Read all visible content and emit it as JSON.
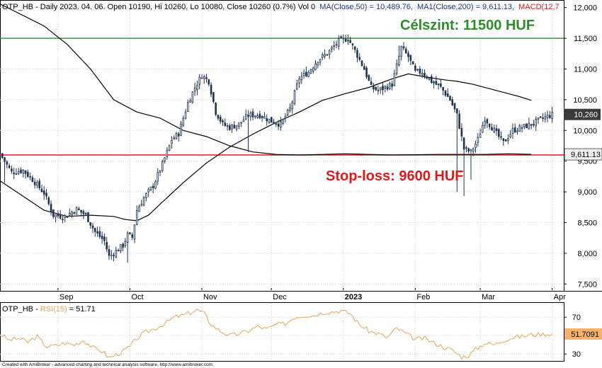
{
  "chart_data": [
    {
      "type": "candlestick",
      "title": "OTP_HB - Daily 2023. 04. 06. Open 10190, Hi 10260, Lo 10080, Close 10260 (0.7%) Vol 0",
      "legend": {
        "ma50": "MA(Close,50) = 10,489.76,",
        "ma200": "MA1(Close,200) = 9,611.13,",
        "macd": "MACD(12,7"
      },
      "y_ticks": [
        "12,000",
        "11,500",
        "11,000",
        "10,500",
        "10,000",
        "9,500",
        "9,000",
        "8,500",
        "8,000",
        "7,500"
      ],
      "ylim": [
        7400,
        12100
      ],
      "x_labels": [
        {
          "label": "Sep",
          "day": 6
        },
        {
          "label": "Oct",
          "day": 37
        },
        {
          "label": "Nov",
          "day": 68
        },
        {
          "label": "Dec",
          "day": 98
        },
        {
          "label": "2023",
          "day": 129
        },
        {
          "label": "Feb",
          "day": 160
        },
        {
          "label": "Mar",
          "day": 188
        },
        {
          "label": "Apr",
          "day": 219
        }
      ],
      "xlim": [
        -19,
        224
      ],
      "current_price": "10,260",
      "ma200_value": "9,611.13",
      "annotations": [
        {
          "text": "Célszint: 11500 HUF",
          "level": 11500,
          "color": "#2e8b2e"
        },
        {
          "text": "Stop-loss: 9600 HUF",
          "level": 9600,
          "color": "#e0191a"
        }
      ],
      "levels": {
        "target": 11500,
        "stop": 9600
      },
      "colors": {
        "up": "#ffffff",
        "down": "#1e3451",
        "target_line": "#2e8b2e",
        "stop_line": "#e0191a",
        "ma": "#000000",
        "rsi": "#e8a45a"
      },
      "close_points": [
        [
          -19,
          9620
        ],
        [
          -14,
          9320
        ],
        [
          -9,
          9350
        ],
        [
          -5,
          9200
        ],
        [
          0,
          8980
        ],
        [
          4,
          8620
        ],
        [
          9,
          8600
        ],
        [
          14,
          8720
        ],
        [
          18,
          8620
        ],
        [
          22,
          8350
        ],
        [
          26,
          8200
        ],
        [
          28,
          7950
        ],
        [
          30,
          8000
        ],
        [
          34,
          8130
        ],
        [
          36,
          8300
        ],
        [
          38,
          8260
        ],
        [
          40,
          8700
        ],
        [
          43,
          8900
        ],
        [
          47,
          9100
        ],
        [
          51,
          9450
        ],
        [
          55,
          9850
        ],
        [
          58,
          9950
        ],
        [
          62,
          10450
        ],
        [
          65,
          10700
        ],
        [
          68,
          10900
        ],
        [
          71,
          10800
        ],
        [
          74,
          10300
        ],
        [
          77,
          10100
        ],
        [
          80,
          10050
        ],
        [
          84,
          10100
        ],
        [
          88,
          10250
        ],
        [
          93,
          10250
        ],
        [
          98,
          10150
        ],
        [
          102,
          10100
        ],
        [
          106,
          10350
        ],
        [
          110,
          10850
        ],
        [
          114,
          10950
        ],
        [
          118,
          11150
        ],
        [
          122,
          11250
        ],
        [
          127,
          11450
        ],
        [
          131,
          11500
        ],
        [
          134,
          11300
        ],
        [
          138,
          11000
        ],
        [
          141,
          10700
        ],
        [
          144,
          10650
        ],
        [
          147,
          10700
        ],
        [
          150,
          10750
        ],
        [
          154,
          11350
        ],
        [
          157,
          11200
        ],
        [
          160,
          10950
        ],
        [
          163,
          10950
        ],
        [
          167,
          10800
        ],
        [
          171,
          10700
        ],
        [
          175,
          10500
        ],
        [
          178,
          10250
        ],
        [
          181,
          9700
        ],
        [
          184,
          9650
        ],
        [
          187,
          9850
        ],
        [
          190,
          10200
        ],
        [
          194,
          10000
        ],
        [
          198,
          9800
        ],
        [
          202,
          10000
        ],
        [
          206,
          10050
        ],
        [
          210,
          10100
        ],
        [
          215,
          10200
        ],
        [
          219,
          10260
        ]
      ],
      "wicks": [
        {
          "day": -17,
          "low": 9150
        },
        {
          "day": 36,
          "low": 7850
        },
        {
          "day": 88,
          "low": 9650
        },
        {
          "day": 127,
          "high": 11550
        },
        {
          "day": 131,
          "high": 11560
        },
        {
          "day": 178,
          "low": 9000
        },
        {
          "day": 181,
          "low": 8930
        },
        {
          "day": 184,
          "low": 9200
        },
        {
          "day": 153,
          "high": 11380
        }
      ],
      "ma50": [
        [
          -19,
          9180
        ],
        [
          0,
          8700
        ],
        [
          10,
          8600
        ],
        [
          20,
          8620
        ],
        [
          30,
          8600
        ],
        [
          35,
          8550
        ],
        [
          40,
          8530
        ],
        [
          45,
          8620
        ],
        [
          50,
          8800
        ],
        [
          60,
          9150
        ],
        [
          70,
          9470
        ],
        [
          80,
          9730
        ],
        [
          90,
          9940
        ],
        [
          100,
          10130
        ],
        [
          110,
          10300
        ],
        [
          120,
          10490
        ],
        [
          130,
          10600
        ],
        [
          140,
          10700
        ],
        [
          150,
          10840
        ],
        [
          157,
          10920
        ],
        [
          163,
          10880
        ],
        [
          171,
          10830
        ],
        [
          178,
          10800
        ],
        [
          185,
          10750
        ],
        [
          195,
          10650
        ],
        [
          205,
          10550
        ],
        [
          210,
          10490
        ]
      ],
      "ma200": [
        [
          -19,
          12060
        ],
        [
          0,
          11700
        ],
        [
          10,
          11400
        ],
        [
          20,
          11000
        ],
        [
          30,
          10500
        ],
        [
          40,
          10300
        ],
        [
          50,
          10200
        ],
        [
          60,
          10000
        ],
        [
          70,
          9900
        ],
        [
          80,
          9750
        ],
        [
          90,
          9650
        ],
        [
          100,
          9610
        ],
        [
          110,
          9600
        ],
        [
          120,
          9610
        ],
        [
          130,
          9620
        ],
        [
          140,
          9610
        ],
        [
          150,
          9600
        ],
        [
          160,
          9605
        ],
        [
          170,
          9610
        ],
        [
          180,
          9610
        ],
        [
          190,
          9610
        ],
        [
          200,
          9620
        ],
        [
          210,
          9611
        ]
      ]
    },
    {
      "type": "line",
      "title": "OTP_HB - RSI(15) = 51.71",
      "label_text": "OTP_HB - ",
      "indicator_text": "RSI(15)",
      "value_text": " = 51.71",
      "y_ticks": [
        "70",
        "50",
        "30"
      ],
      "ylim": [
        24,
        84
      ],
      "current_value": "51.7091",
      "rsi_points": [
        [
          -19,
          52
        ],
        [
          -15,
          45
        ],
        [
          -11,
          47
        ],
        [
          -7,
          43
        ],
        [
          -3,
          49
        ],
        [
          1,
          38
        ],
        [
          5,
          39
        ],
        [
          9,
          42
        ],
        [
          13,
          40
        ],
        [
          17,
          45
        ],
        [
          21,
          37
        ],
        [
          25,
          33
        ],
        [
          28,
          26
        ],
        [
          31,
          29
        ],
        [
          34,
          33
        ],
        [
          37,
          38
        ],
        [
          40,
          47
        ],
        [
          44,
          54
        ],
        [
          48,
          58
        ],
        [
          52,
          63
        ],
        [
          56,
          70
        ],
        [
          60,
          72
        ],
        [
          63,
          75
        ],
        [
          66,
          78
        ],
        [
          69,
          74
        ],
        [
          72,
          62
        ],
        [
          76,
          55
        ],
        [
          80,
          50
        ],
        [
          84,
          52
        ],
        [
          88,
          55
        ],
        [
          92,
          60
        ],
        [
          96,
          57
        ],
        [
          100,
          62
        ],
        [
          104,
          63
        ],
        [
          108,
          70
        ],
        [
          112,
          72
        ],
        [
          116,
          72
        ],
        [
          120,
          75
        ],
        [
          124,
          76
        ],
        [
          128,
          77
        ],
        [
          132,
          74
        ],
        [
          136,
          62
        ],
        [
          140,
          55
        ],
        [
          144,
          52
        ],
        [
          148,
          48
        ],
        [
          152,
          58
        ],
        [
          156,
          52
        ],
        [
          160,
          46
        ],
        [
          164,
          47
        ],
        [
          168,
          42
        ],
        [
          172,
          38
        ],
        [
          176,
          34
        ],
        [
          180,
          27
        ],
        [
          183,
          28
        ],
        [
          186,
          35
        ],
        [
          190,
          42
        ],
        [
          194,
          40
        ],
        [
          198,
          45
        ],
        [
          202,
          48
        ],
        [
          206,
          49
        ],
        [
          210,
          51
        ],
        [
          215,
          51.7
        ]
      ]
    }
  ],
  "footer": {
    "credit": "Created with AmiBroker - advanced charting and technical analysis software. http://www.amibroker.com"
  }
}
